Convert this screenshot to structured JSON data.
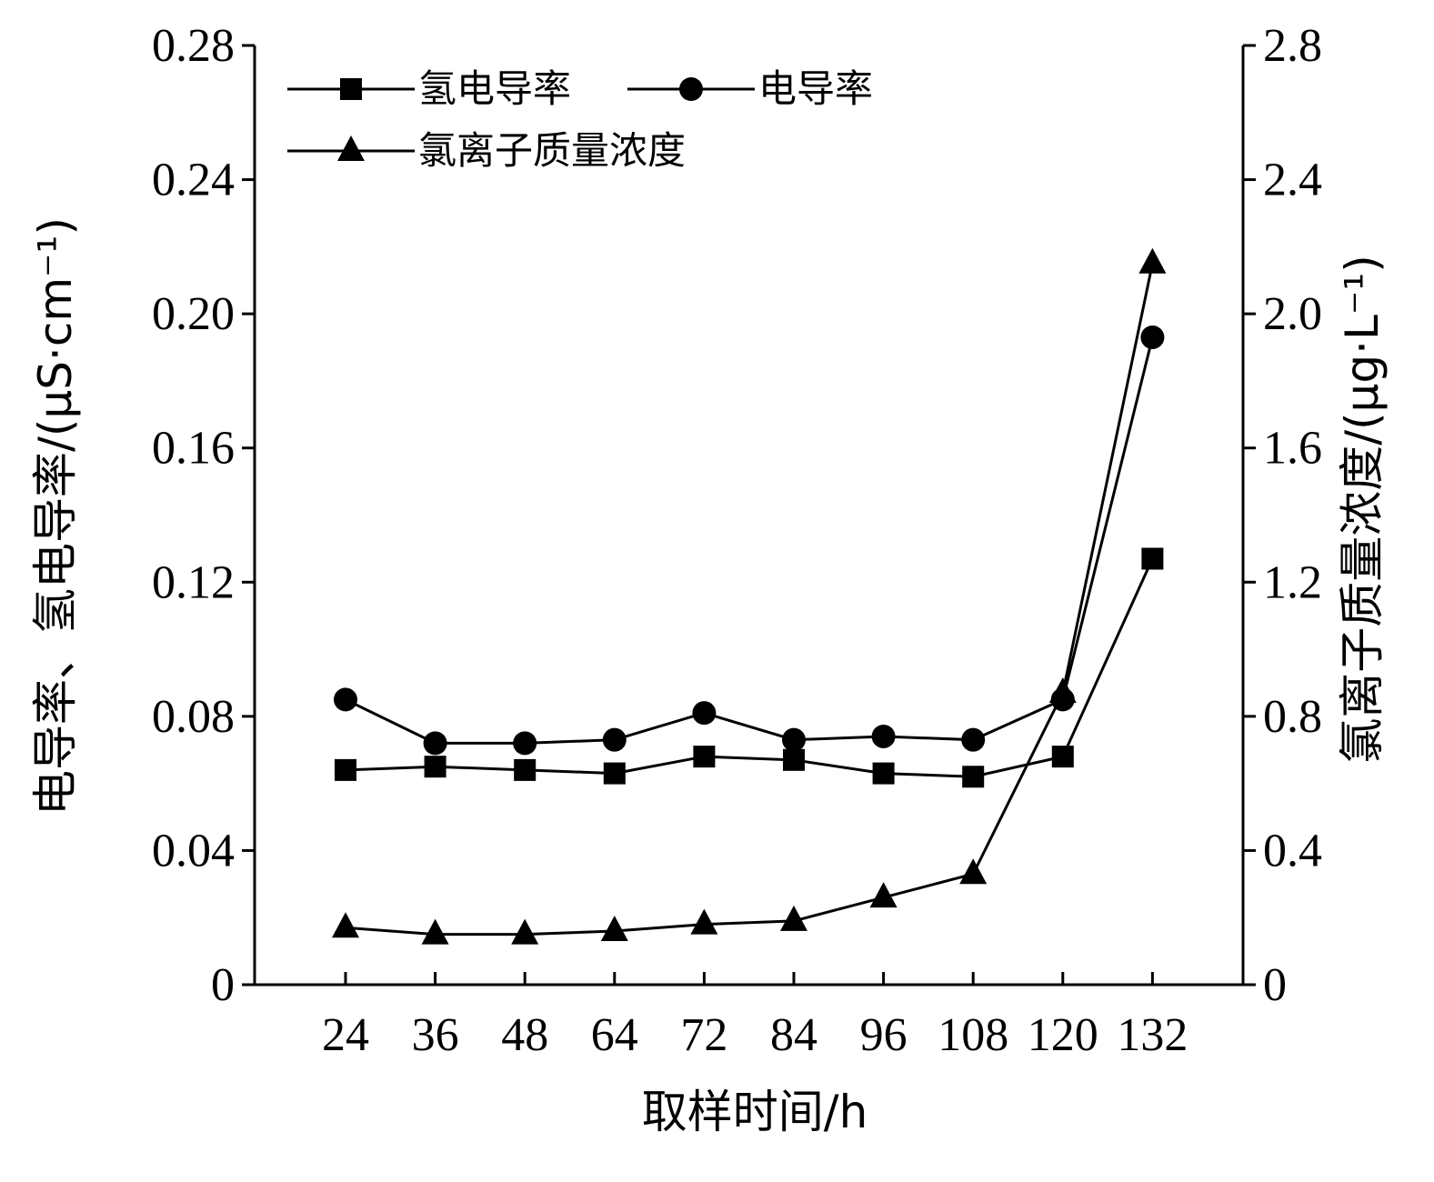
{
  "chart_data": {
    "type": "line",
    "xlabel": "取样时间/h",
    "ylabel_left": "电导率、氢电导率/(μS·cm⁻¹)",
    "ylabel_right": "氯离子质量浓度/(μg·L⁻¹)",
    "categories": [
      "24",
      "36",
      "48",
      "64",
      "72",
      "84",
      "96",
      "108",
      "120",
      "132"
    ],
    "y_left": {
      "min": 0,
      "max": 0.28,
      "ticks": [
        0,
        0.04,
        0.08,
        0.12,
        0.16,
        0.2,
        0.24,
        0.28
      ],
      "tick_labels": [
        "0",
        "0.04",
        "0.08",
        "0.12",
        "0.16",
        "0.20",
        "0.24",
        "0.28"
      ]
    },
    "y_right": {
      "min": 0,
      "max": 2.8,
      "ticks": [
        0,
        0.4,
        0.8,
        1.2,
        1.6,
        2.0,
        2.4,
        2.8
      ],
      "tick_labels": [
        "0",
        "0.4",
        "0.8",
        "1.2",
        "1.6",
        "2.0",
        "2.4",
        "2.8"
      ]
    },
    "grid": false,
    "legend_position": "top-left",
    "series": [
      {
        "name": "氢电导率",
        "marker": "square",
        "axis": "left",
        "values": [
          0.064,
          0.065,
          0.064,
          0.063,
          0.068,
          0.067,
          0.063,
          0.062,
          0.068,
          0.127
        ]
      },
      {
        "name": "电导率",
        "marker": "circle",
        "axis": "left",
        "values": [
          0.085,
          0.072,
          0.072,
          0.073,
          0.081,
          0.073,
          0.074,
          0.073,
          0.085,
          0.193
        ]
      },
      {
        "name": "氯离子质量浓度",
        "marker": "triangle",
        "axis": "right",
        "values": [
          0.17,
          0.15,
          0.15,
          0.16,
          0.18,
          0.19,
          0.26,
          0.33,
          0.87,
          2.15
        ]
      }
    ]
  }
}
